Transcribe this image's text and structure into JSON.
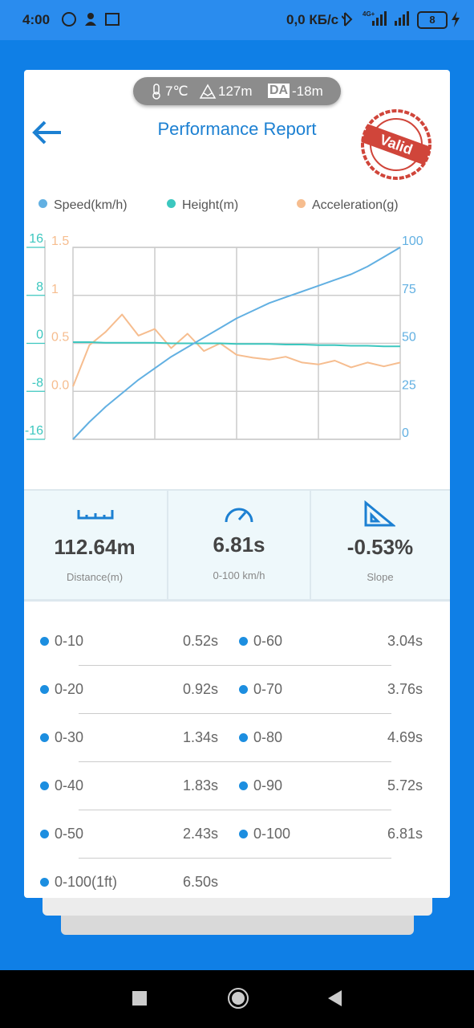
{
  "status_bar": {
    "time": "4:00",
    "network": "0,0 КБ/с",
    "signal": "4G+",
    "battery": "8"
  },
  "conditions": {
    "temperature": "7℃",
    "altitude": "127m",
    "da_label": "DA",
    "density_altitude": "-18m"
  },
  "header": {
    "title": "Performance Report",
    "stamp": "Valid"
  },
  "chart_data": {
    "type": "line",
    "series": [
      {
        "name": "Speed(km/h)",
        "color": "#62b0e2",
        "axis": "y2",
        "values": [
          0,
          9,
          17,
          24,
          31,
          37,
          43,
          48,
          53,
          58,
          63,
          67,
          71,
          74,
          77,
          80,
          83,
          86,
          90,
          95,
          100
        ]
      },
      {
        "name": "Height(m)",
        "color": "#3cc7bf",
        "axis": "y",
        "values": [
          0.2,
          0.2,
          0.1,
          0.1,
          0.1,
          0.1,
          0.0,
          0.0,
          0.0,
          0.0,
          -0.1,
          -0.1,
          -0.1,
          -0.2,
          -0.2,
          -0.3,
          -0.3,
          -0.4,
          -0.4,
          -0.5,
          -0.5
        ]
      },
      {
        "name": "Acceleration(g)",
        "color": "#f6bd8f",
        "axis": "y3",
        "values": [
          0.05,
          0.48,
          0.62,
          0.8,
          0.58,
          0.65,
          0.45,
          0.6,
          0.42,
          0.5,
          0.38,
          0.35,
          0.33,
          0.36,
          0.3,
          0.28,
          0.32,
          0.25,
          0.3,
          0.26,
          0.3
        ]
      }
    ],
    "ylim": [
      -16,
      16
    ],
    "yticks": [
      -16,
      -8,
      0,
      8,
      16
    ],
    "y2lim": [
      0,
      100
    ],
    "y2ticks": [
      0,
      25,
      50,
      75,
      100
    ],
    "y3lim": [
      -0.5,
      1.5
    ],
    "y3ticks": [
      {
        "value": 0,
        "label": "0.0"
      },
      0.5,
      1,
      1.5
    ],
    "grid": true
  },
  "metrics": [
    {
      "value": "112.64m",
      "label": "Distance(m)"
    },
    {
      "value": "6.81s",
      "label": "0-100 km/h"
    },
    {
      "value": "-0.53%",
      "label": "Slope"
    }
  ],
  "splits": [
    {
      "label": "0-10",
      "time": "0.52s"
    },
    {
      "label": "0-20",
      "time": "0.92s"
    },
    {
      "label": "0-30",
      "time": "1.34s"
    },
    {
      "label": "0-40",
      "time": "1.83s"
    },
    {
      "label": "0-50",
      "time": "2.43s"
    },
    {
      "label": "0-60",
      "time": "3.04s"
    },
    {
      "label": "0-70",
      "time": "3.76s"
    },
    {
      "label": "0-80",
      "time": "4.69s"
    },
    {
      "label": "0-90",
      "time": "5.72s"
    },
    {
      "label": "0-100",
      "time": "6.81s"
    },
    {
      "label": "0-100(1ft)",
      "time": "6.50s"
    }
  ]
}
